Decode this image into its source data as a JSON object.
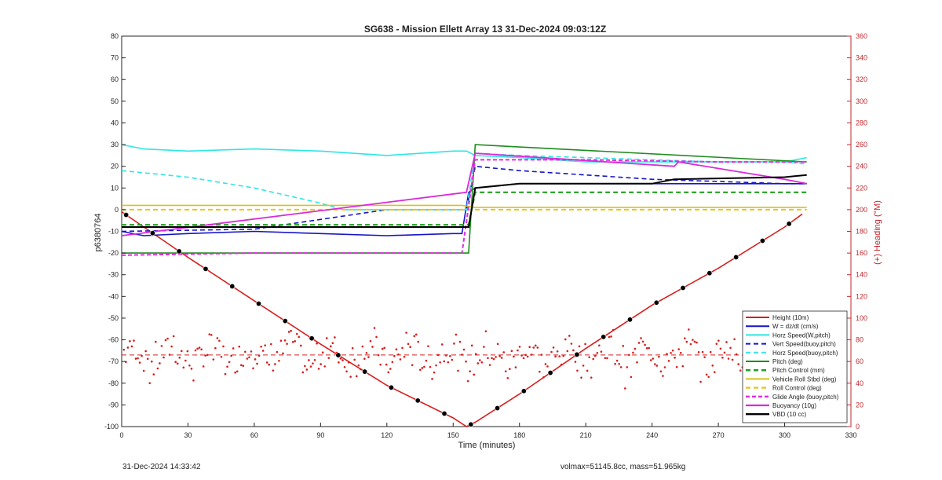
{
  "chart_data": {
    "type": "line",
    "title": "SG638 - Mission Ellett Array 13 31-Dec-2024 09:03:12Z",
    "xlabel": "Time (minutes)",
    "ylabel_left": "p6380764",
    "ylabel_right": "(+) Heading (°M)",
    "xlim": [
      0,
      330
    ],
    "ylim_left": [
      -100,
      80
    ],
    "ylim_right": [
      0,
      360
    ],
    "x_ticks": [
      "0",
      "30",
      "60",
      "90",
      "120",
      "150",
      "180",
      "210",
      "240",
      "270",
      "300",
      "330"
    ],
    "y_ticks_left": [
      "80",
      "70",
      "60",
      "50",
      "40",
      "30",
      "20",
      "10",
      "0",
      "-10",
      "-20",
      "-30",
      "-40",
      "-50",
      "-60",
      "-70",
      "-80",
      "-90",
      "-100"
    ],
    "y_ticks_right": [
      "360",
      "340",
      "320",
      "300",
      "280",
      "260",
      "240",
      "220",
      "200",
      "180",
      "160",
      "140",
      "120",
      "100",
      "80",
      "60",
      "40",
      "20",
      "0"
    ],
    "grid": false,
    "legend_position": "bottom-right",
    "colors": {
      "height": "#d81e1e",
      "w": "#1515c8",
      "horz_speed": "#2ee6e6",
      "vert_speed": "#1515c8",
      "horz_speed_buoy": "#2ee6e6",
      "pitch": "#1e8c1e",
      "pitch_control": "#22a022",
      "roll": "#d9c21a",
      "roll_control": "#e6c81e",
      "glide_angle": "#e02de0",
      "buoyancy": "#d92ad9",
      "vbd": "#000000",
      "heading": "#d81e1e",
      "axis_right": "#c0282d"
    },
    "legend": [
      "Height (10m)",
      "W = dz/dt (cm/s)",
      "Horz Speed(W,pitch)",
      "Vert Speed(buoy,pitch)",
      "Horz Speed(buoy,pitch)",
      "Pitch (deg)",
      "Pitch Control (mm)",
      "Vehicle Roll Stbd (deg)",
      "Roll Control (deg)",
      "Glide Angle (buoy,pitch)",
      "Buoyancy (10g)",
      "VBD (10 cc)"
    ],
    "series": [
      {
        "name": "Height (10m)",
        "x": [
          0,
          10,
          30,
          60,
          90,
          120,
          150,
          156,
          160,
          180,
          210,
          240,
          270,
          300,
          308
        ],
        "y": [
          -1,
          -8,
          -22,
          -42,
          -62,
          -81,
          -96,
          -100,
          -98,
          -85,
          -64,
          -44,
          -27,
          -8,
          -2
        ]
      },
      {
        "name": "W = dz/dt (cm/s)",
        "x": [
          0,
          5,
          10,
          30,
          60,
          90,
          120,
          150,
          154,
          157,
          160,
          180,
          210,
          240,
          270,
          300,
          310
        ],
        "y": [
          -10,
          -11,
          -12,
          -11,
          -10,
          -11,
          -12,
          -11,
          -11,
          8,
          10,
          12,
          12,
          12,
          12,
          12,
          12
        ]
      },
      {
        "name": "Horz Speed(W,pitch)",
        "x": [
          0,
          10,
          30,
          60,
          90,
          120,
          150,
          156,
          160,
          180,
          210,
          240,
          270,
          300,
          310
        ],
        "y": [
          30,
          28,
          27,
          28,
          27,
          25,
          27,
          27,
          25,
          24,
          22,
          22,
          22,
          22,
          24
        ]
      },
      {
        "name": "Vert Speed(buoy,pitch)",
        "x": [
          0,
          60,
          100,
          120,
          150,
          156,
          160,
          180,
          210,
          240,
          270,
          300,
          310
        ],
        "y": [
          -10,
          -9,
          -3,
          0,
          0,
          0,
          20,
          18,
          16,
          14,
          13,
          12,
          12
        ]
      },
      {
        "name": "Horz Speed(buoy,pitch)",
        "x": [
          0,
          30,
          60,
          90,
          100,
          120,
          150,
          156,
          160,
          180,
          210,
          240,
          270,
          300,
          310
        ],
        "y": [
          18,
          15,
          10,
          3,
          0,
          0,
          0,
          0,
          26,
          25,
          24,
          23,
          22,
          22,
          21
        ]
      },
      {
        "name": "Pitch (deg)",
        "x": [
          0,
          154,
          157,
          160,
          310
        ],
        "y": [
          -20,
          -20,
          -20,
          30,
          22
        ]
      },
      {
        "name": "Pitch Control (mm)",
        "x": [
          0,
          154,
          157,
          160,
          310
        ],
        "y": [
          -7,
          -7,
          -7,
          8,
          8
        ]
      },
      {
        "name": "Vehicle Roll Stbd (deg)",
        "x": [
          0,
          60,
          120,
          154,
          160,
          210,
          270,
          310
        ],
        "y": [
          2,
          2,
          2,
          2,
          1,
          1,
          1,
          1
        ]
      },
      {
        "name": "Roll Control (deg)",
        "x": [
          0,
          310
        ],
        "y": [
          0,
          0
        ]
      },
      {
        "name": "Glide Angle (buoy,pitch)",
        "x": [
          0,
          60,
          120,
          154,
          160,
          210,
          270,
          310
        ],
        "y": [
          -21,
          -20,
          -20,
          -20,
          23,
          23,
          22,
          22
        ]
      },
      {
        "name": "Buoyancy (10g)",
        "x": [
          0,
          156,
          160,
          250,
          252,
          300,
          310
        ],
        "y": [
          -12,
          8,
          26,
          20,
          22,
          14,
          12
        ]
      },
      {
        "name": "VBD (10 cc)",
        "x": [
          0,
          154,
          157,
          160,
          180,
          210,
          240,
          250,
          300,
          310
        ],
        "y": [
          -8,
          -8,
          -8,
          10,
          12,
          12,
          12,
          14,
          15,
          16
        ]
      }
    ],
    "heading_mean_deg": 66
  },
  "footer": {
    "left": "31-Dec-2024 14:33:42",
    "right": "volmax=51145.8cc, mass=51.965kg"
  }
}
